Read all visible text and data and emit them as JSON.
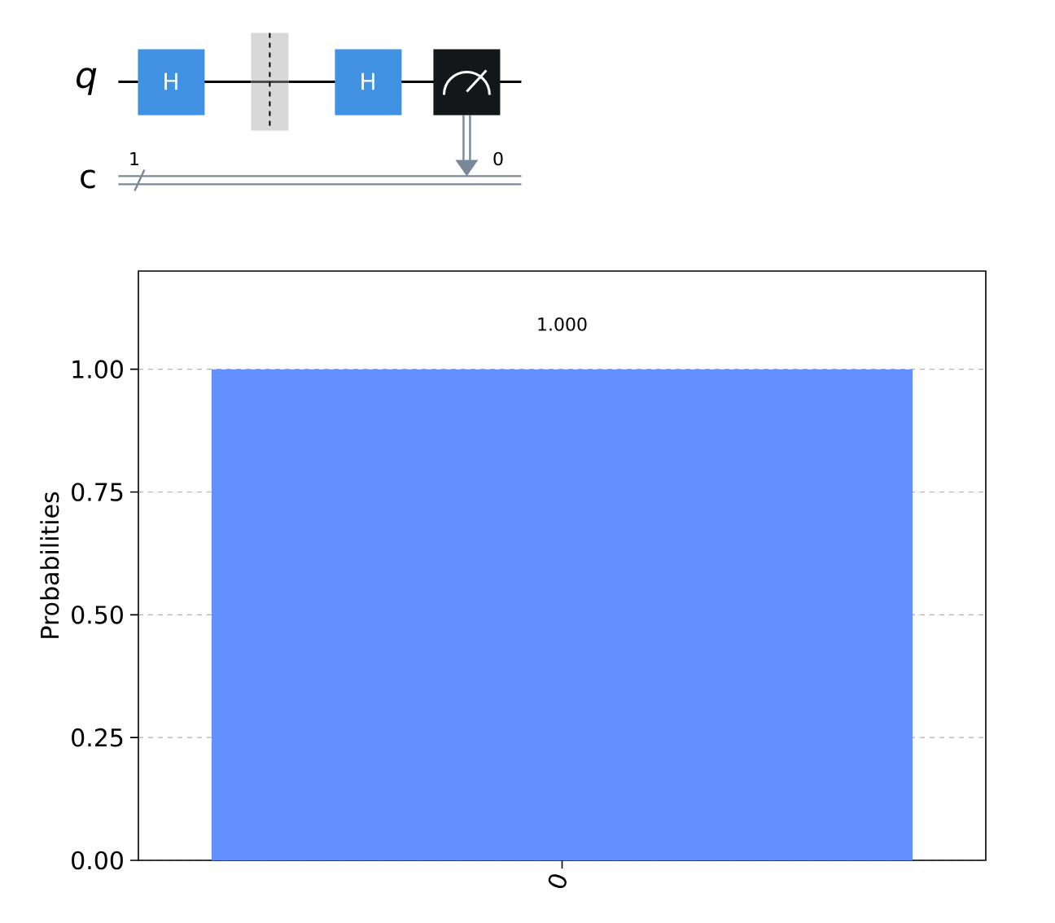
{
  "chart_data": {
    "type": "bar",
    "categories": [
      "0"
    ],
    "values": [
      1.0
    ],
    "color": "#648fff",
    "ylabel": "Probabilities",
    "ylim": [
      0,
      1.2
    ],
    "yticks": [
      {
        "value": 0,
        "label": "0.00"
      },
      {
        "value": 0.25,
        "label": "0.25"
      },
      {
        "value": 0.5,
        "label": "0.50"
      },
      {
        "value": 0.75,
        "label": "0.75"
      },
      {
        "value": 1,
        "label": "1.00"
      }
    ],
    "grid": "y",
    "value_labels": [
      "1.000"
    ],
    "annotations": [
      "q",
      "c",
      "H",
      "H",
      "1",
      "0"
    ]
  }
}
